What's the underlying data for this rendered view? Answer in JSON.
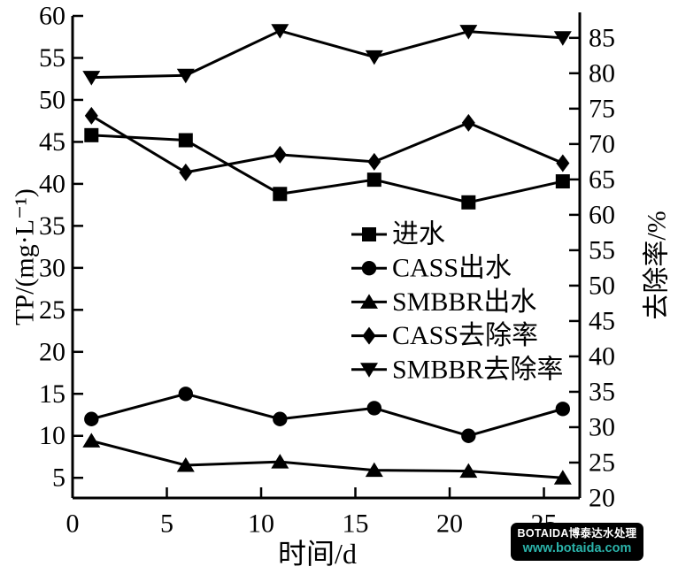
{
  "watermark": {
    "line1": "BOTAIDA博泰达水处理",
    "line2": "www.botaida.com",
    "bg_color": "#000000",
    "line1_color": "#ffffff",
    "line2_color": "#2bb3aa"
  },
  "chart_data": {
    "type": "line",
    "title": "",
    "xlabel": "时间/d",
    "ylabel_left": "TP/(mg·L⁻¹)",
    "ylabel_right": "去除率/%",
    "x": [
      1,
      6,
      11,
      16,
      21,
      26
    ],
    "x_ticks": [
      0,
      5,
      10,
      15,
      20,
      25
    ],
    "x_range": [
      0,
      26.9
    ],
    "left_ticks": [
      5,
      10,
      15,
      20,
      25,
      30,
      35,
      40,
      45,
      50,
      55,
      60
    ],
    "left_range": [
      2.6,
      60
    ],
    "right_ticks": [
      20,
      25,
      30,
      35,
      40,
      45,
      50,
      55,
      60,
      65,
      70,
      75,
      80,
      85
    ],
    "right_range": [
      20,
      88.1
    ],
    "grid": false,
    "legend_position": "inside-center-right",
    "line_color": "#000000",
    "series": [
      {
        "name": "进水",
        "axis": "left",
        "marker": "square",
        "values": [
          45.8,
          45.2,
          38.8,
          40.5,
          37.8,
          40.3
        ]
      },
      {
        "name": "CASS出水",
        "axis": "left",
        "marker": "circle",
        "values": [
          12.0,
          15.0,
          12.0,
          13.3,
          10.0,
          13.2
        ]
      },
      {
        "name": "SMBBR出水",
        "axis": "left",
        "marker": "triangle-up",
        "values": [
          9.4,
          6.5,
          6.9,
          5.9,
          5.8,
          5.0
        ]
      },
      {
        "name": "CASS去除率",
        "axis": "right",
        "marker": "diamond",
        "values": [
          74.0,
          66.0,
          68.5,
          67.5,
          73.0,
          67.3
        ]
      },
      {
        "name": "SMBBR去除率",
        "axis": "right",
        "marker": "triangle-down",
        "values": [
          79.4,
          79.7,
          86.0,
          82.3,
          85.9,
          85.0
        ]
      }
    ]
  }
}
